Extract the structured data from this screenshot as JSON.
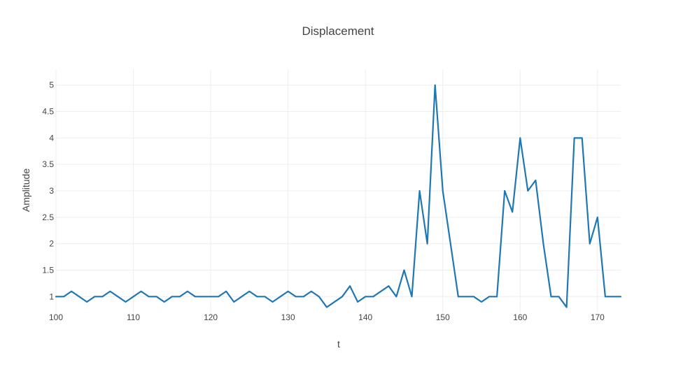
{
  "chart_data": {
    "type": "line",
    "title": "Displacement",
    "xlabel": "t",
    "ylabel": "Amplitude",
    "xlim": [
      100,
      173
    ],
    "ylim": [
      0.7,
      5.3
    ],
    "grid": true,
    "legend": "none",
    "x_ticks": [
      {
        "value": 100,
        "label": "100"
      },
      {
        "value": 110,
        "label": "110"
      },
      {
        "value": 120,
        "label": "120"
      },
      {
        "value": 130,
        "label": "130"
      },
      {
        "value": 140,
        "label": "140"
      },
      {
        "value": 150,
        "label": "150"
      },
      {
        "value": 160,
        "label": "160"
      },
      {
        "value": 170,
        "label": "170"
      }
    ],
    "y_ticks": [
      {
        "value": 1,
        "label": "1"
      },
      {
        "value": 1.5,
        "label": "1.5"
      },
      {
        "value": 2,
        "label": "2"
      },
      {
        "value": 2.5,
        "label": "2.5"
      },
      {
        "value": 3,
        "label": "3"
      },
      {
        "value": 3.5,
        "label": "3.5"
      },
      {
        "value": 4,
        "label": "4"
      },
      {
        "value": 4.5,
        "label": "4.5"
      },
      {
        "value": 5,
        "label": "5"
      }
    ],
    "series": [
      {
        "color": "#1f77b4",
        "x": [
          100,
          101,
          102,
          103,
          104,
          105,
          106,
          107,
          108,
          109,
          110,
          111,
          112,
          113,
          114,
          115,
          116,
          117,
          118,
          119,
          120,
          121,
          122,
          123,
          124,
          125,
          126,
          127,
          128,
          129,
          130,
          131,
          132,
          133,
          134,
          135,
          137,
          138,
          139,
          140,
          141,
          143,
          144,
          145,
          146,
          147,
          148,
          149,
          150,
          152,
          153,
          154,
          155,
          156,
          157,
          158,
          159,
          160,
          161,
          162,
          163,
          164,
          165,
          166,
          167,
          168,
          169,
          170,
          171,
          172,
          173
        ],
        "y": [
          1,
          1,
          1.1,
          1,
          0.9,
          1,
          1,
          1.1,
          1,
          0.9,
          1,
          1.1,
          1,
          1,
          0.9,
          1,
          1,
          1.1,
          1,
          1,
          1,
          1,
          1.1,
          0.9,
          1,
          1.1,
          1,
          1,
          0.9,
          1,
          1.1,
          1,
          1,
          1.1,
          1,
          0.8,
          1,
          1.2,
          0.9,
          1,
          1,
          1.2,
          1,
          1.5,
          1,
          3,
          2,
          5,
          3,
          1,
          1,
          1,
          0.9,
          1,
          1,
          3,
          2.6,
          4,
          3,
          3.2,
          2,
          1,
          1,
          0.8,
          4,
          4,
          2,
          2.5,
          1,
          1,
          1
        ]
      }
    ]
  }
}
